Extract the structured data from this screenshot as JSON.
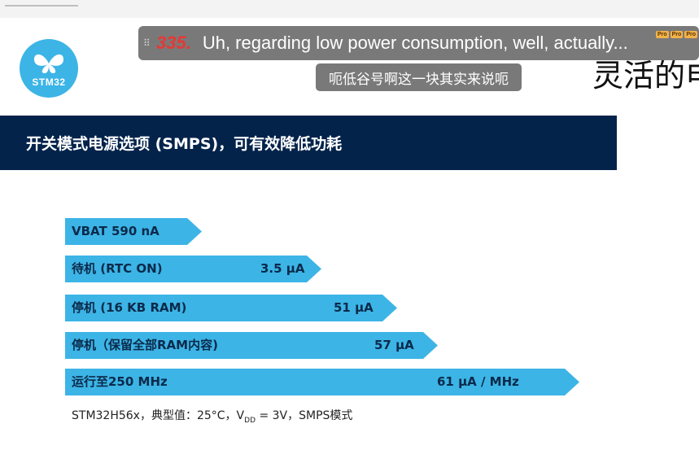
{
  "logo": {
    "text": "STM32"
  },
  "slide": {
    "headline_partial": "灵活的电",
    "banner": "开关模式电源选项 (SMPS)，可有效降低功耗",
    "footnote": {
      "prefix": "STM32H56x，典型值：25°C，V",
      "subscript": "DD",
      "suffix": " = 3V，SMPS模式"
    }
  },
  "subtitle": {
    "number": "335.",
    "english": "Uh, regarding low power consumption, well, actually...",
    "chinese": "呃低谷号啊这一块其实来说呃",
    "badges": [
      "Pro",
      "Pro",
      "Pro"
    ]
  },
  "bars": [
    {
      "label": "VBAT 590 nA",
      "value": ""
    },
    {
      "label": "待机 (RTC ON)",
      "value": "3.5 μA"
    },
    {
      "label": "停机 (16 KB RAM)",
      "value": "51 μA"
    },
    {
      "label": "停机（保留全部RAM内容)",
      "value": "57 μA"
    },
    {
      "label": "运行至250 MHz",
      "value": "61 μA / MHz"
    }
  ],
  "colors": {
    "banner": "#03234b",
    "bar": "#3cb4e6",
    "subtitle_number": "#e53935"
  }
}
